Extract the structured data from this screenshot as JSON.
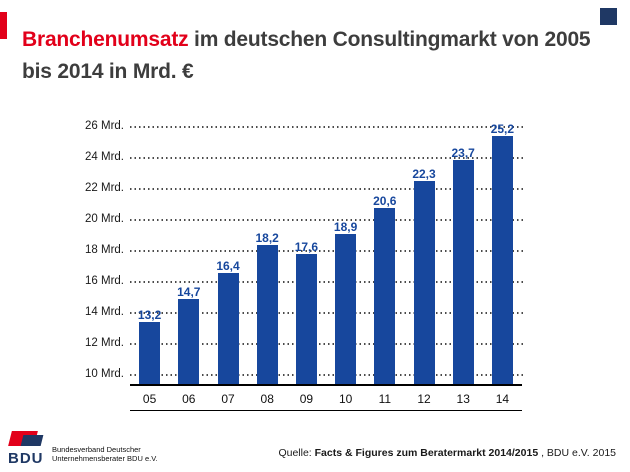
{
  "page": {
    "accent_red": "#E2001A",
    "bar_blue": "#17479D",
    "corner_navy": "#1F3864"
  },
  "header": {
    "title_highlight": "Branchenumsatz",
    "title_rest": " im deutschen Consultingmarkt von 2005 bis 2014 in Mrd. €"
  },
  "chart_data": {
    "type": "bar",
    "title": "Branchenumsatz im deutschen Consultingmarkt von 2005 bis 2014 in Mrd. €",
    "categories": [
      "05",
      "06",
      "07",
      "08",
      "09",
      "10",
      "11",
      "12",
      "13",
      "14"
    ],
    "values": [
      13.2,
      14.7,
      16.4,
      18.2,
      17.6,
      18.9,
      20.6,
      22.3,
      23.7,
      25.2
    ],
    "value_labels": [
      "13,2",
      "14,7",
      "16,4",
      "18,2",
      "17,6",
      "18,9",
      "20,6",
      "22,3",
      "23,7",
      "25,2"
    ],
    "yticks": [
      26,
      24,
      22,
      20,
      18,
      16,
      14,
      12,
      10
    ],
    "ytick_labels": [
      "26 Mrd.",
      "24 Mrd.",
      "22 Mrd.",
      "20 Mrd.",
      "18 Mrd.",
      "16 Mrd.",
      "14 Mrd.",
      "12 Mrd.",
      "10 Mrd."
    ],
    "ylim": [
      10,
      26
    ],
    "xlabel": "",
    "ylabel": "",
    "bar_color": "#17479D",
    "grid": "horizontal-dotted",
    "legend": "none"
  },
  "footer": {
    "logo_text": "BDU",
    "org_lines": [
      "Bundesverband Deutscher",
      "Unternehmensberater BDU e.V."
    ],
    "source_prefix": "Quelle: ",
    "source_bold": "Facts & Figures zum Beratermarkt 2014/2015",
    "source_suffix": " , BDU e.V. 2015"
  }
}
